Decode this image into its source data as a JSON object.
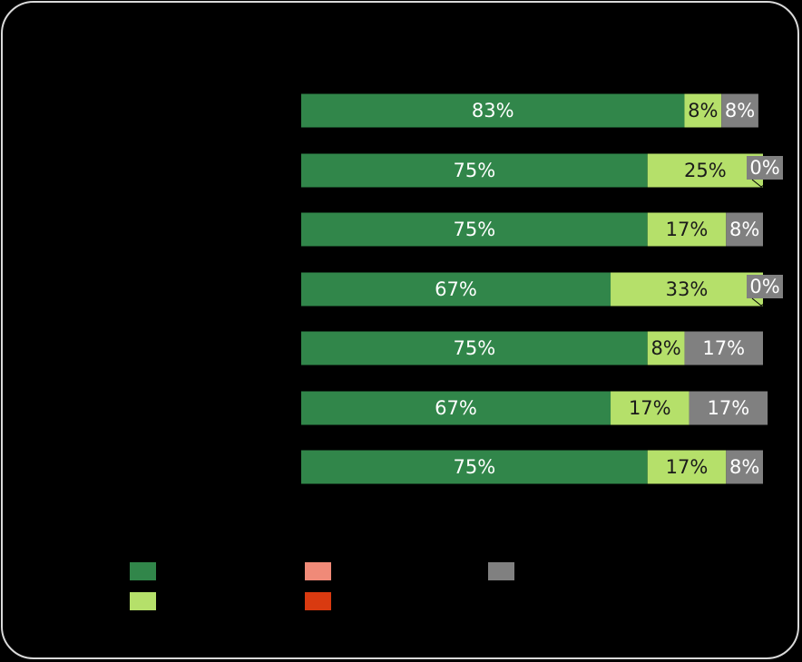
{
  "chart_data": {
    "type": "bar",
    "orientation": "horizontal",
    "stacked": "100%",
    "categories": [
      "",
      "",
      "",
      "",
      "",
      "",
      ""
    ],
    "series": [
      {
        "color": "#31864a",
        "values": [
          83,
          75,
          75,
          67,
          75,
          67,
          75
        ]
      },
      {
        "color": "#b5e06a",
        "values": [
          8,
          25,
          17,
          33,
          8,
          17,
          17
        ]
      },
      {
        "color": "#808080",
        "values": [
          8,
          0,
          8,
          0,
          17,
          17,
          8
        ]
      }
    ],
    "labels": [
      [
        "83%",
        "8%",
        "8%"
      ],
      [
        "75%",
        "25%",
        "0%"
      ],
      [
        "75%",
        "17%",
        "8%"
      ],
      [
        "67%",
        "33%",
        "0%"
      ],
      [
        "75%",
        "8%",
        "17%"
      ],
      [
        "67%",
        "17%",
        "17%"
      ],
      [
        "75%",
        "17%",
        "8%"
      ]
    ],
    "xlim": [
      0,
      100
    ],
    "grid": false,
    "legend": {
      "placement": "bottom",
      "entries": [
        {
          "color": "#31864a"
        },
        {
          "color": "#b5e06a"
        },
        {
          "color": "#f08a78"
        },
        {
          "color": "#d93a10"
        },
        {
          "color": "#808080"
        }
      ]
    }
  }
}
